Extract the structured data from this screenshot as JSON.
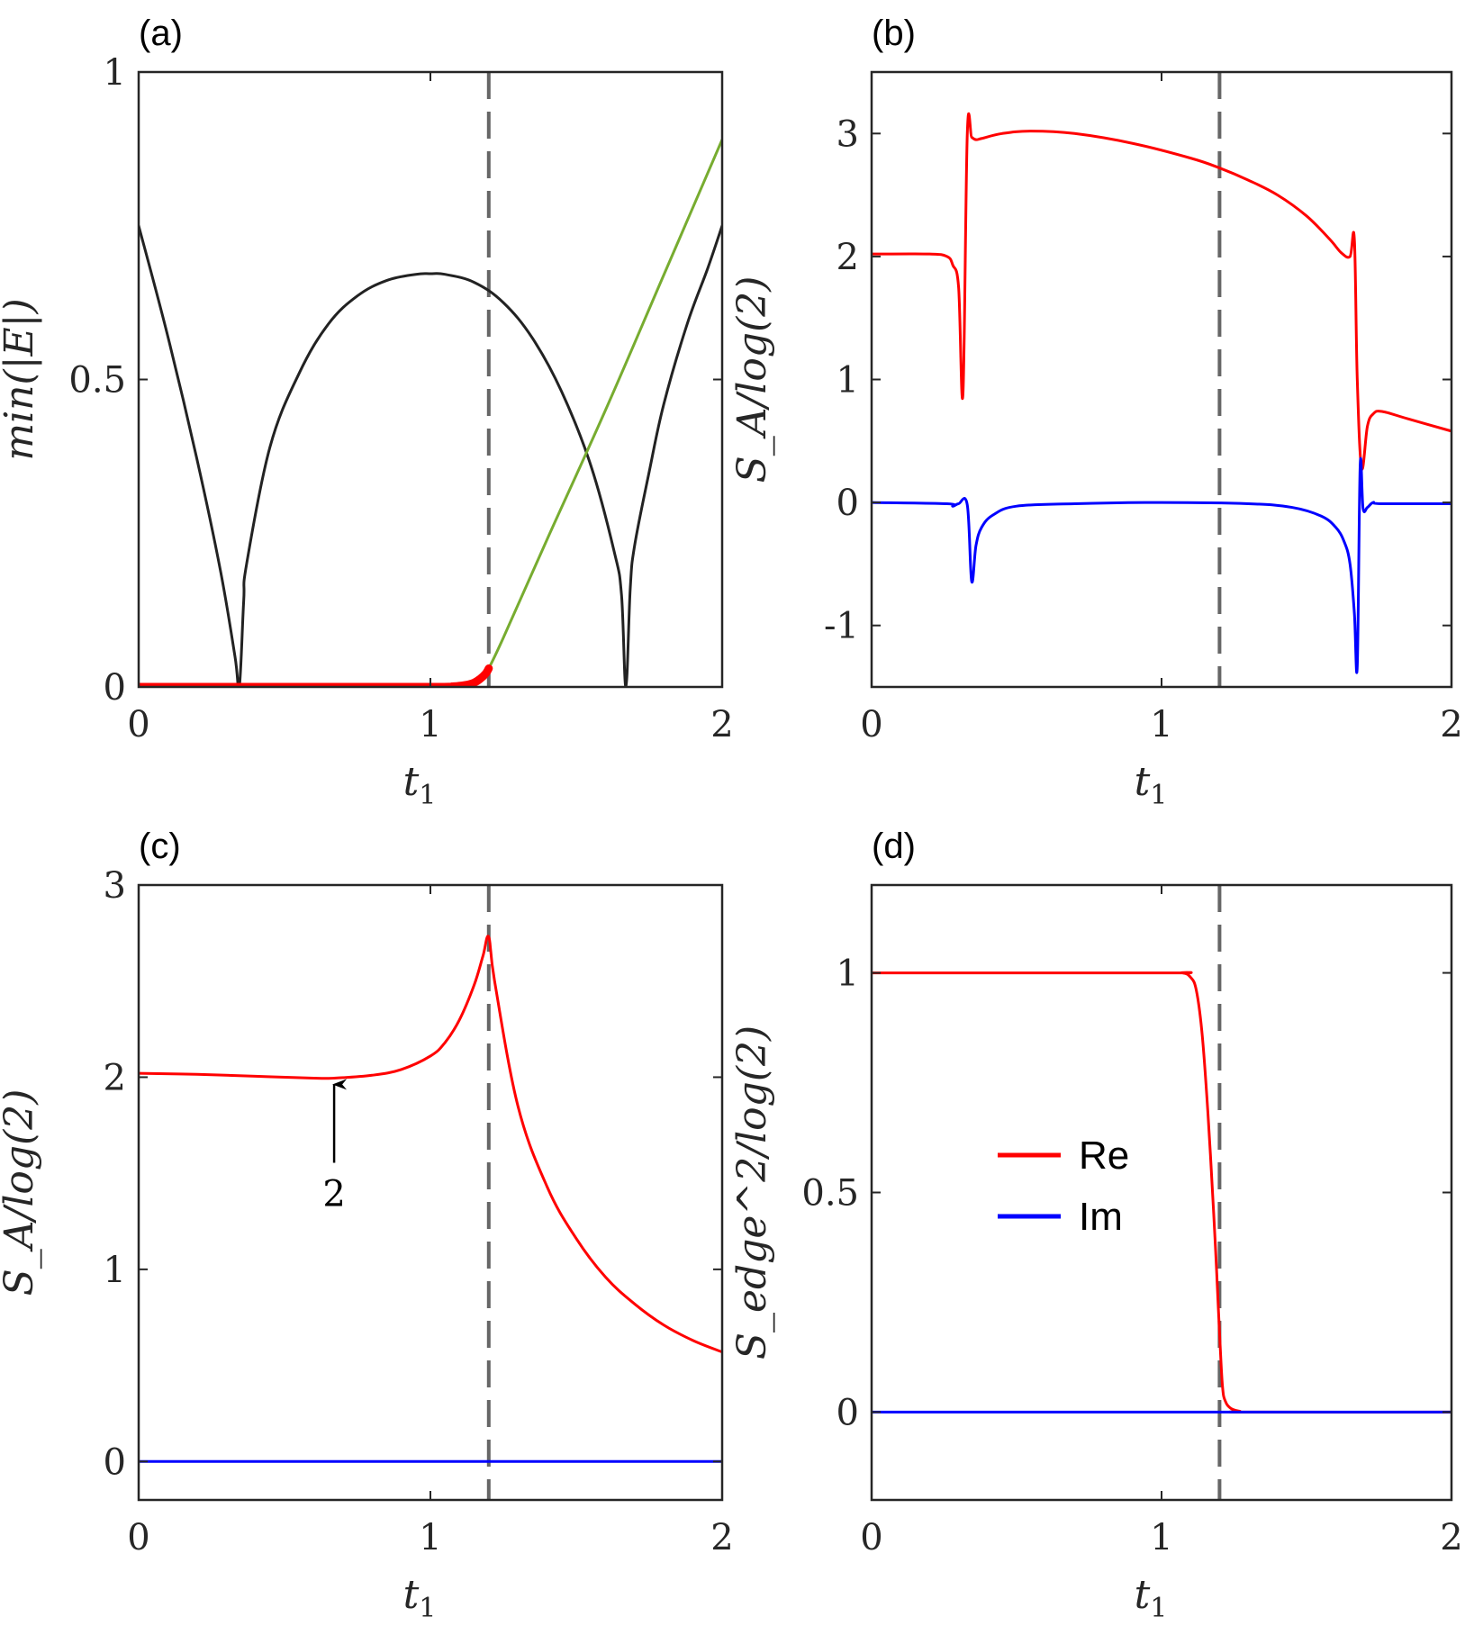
{
  "chart_data": [
    {
      "panel_label": "(a)",
      "type": "line",
      "xlabel": "t",
      "xlabel_sub": "1",
      "ylabel": "min(|E|)",
      "xlim": [
        0,
        2
      ],
      "ylim": [
        0,
        1
      ],
      "xticks": [
        "0",
        "1",
        "2"
      ],
      "yticks": [
        {
          "v": 0,
          "label": "0"
        },
        {
          "v": 0.5,
          "label": "0.5"
        },
        {
          "v": 1,
          "label": "1"
        }
      ],
      "vline": 1.2,
      "series": [
        {
          "name": "black",
          "color": "#222222",
          "width": 3,
          "x": [
            0,
            0.1,
            0.2,
            0.28,
            0.33,
            0.345,
            0.36,
            0.37,
            0.45,
            0.55,
            0.65,
            0.75,
            0.85,
            0.95,
            1.0,
            1.05,
            1.15,
            1.25,
            1.35,
            1.45,
            1.55,
            1.63,
            1.655,
            1.67,
            1.685,
            1.7,
            1.75,
            1.8,
            1.88,
            1.95,
            2.0
          ],
          "y": [
            0.75,
            0.57,
            0.37,
            0.19,
            0.05,
            0.0,
            0.14,
            0.2,
            0.39,
            0.51,
            0.59,
            0.636,
            0.661,
            0.671,
            0.672,
            0.671,
            0.658,
            0.625,
            0.567,
            0.48,
            0.36,
            0.22,
            0.15,
            0.0,
            0.16,
            0.23,
            0.35,
            0.46,
            0.59,
            0.68,
            0.75
          ]
        },
        {
          "name": "green",
          "color": "#77ac30",
          "width": 3,
          "x": [
            1.2,
            1.25,
            1.4,
            1.6,
            1.8,
            2.0
          ],
          "y": [
            0.03,
            0.08,
            0.24,
            0.45,
            0.67,
            0.89
          ]
        },
        {
          "name": "red",
          "color": "#ff0000",
          "width": 9,
          "x": [
            0,
            0.5,
            1.0,
            1.08,
            1.12,
            1.15,
            1.17,
            1.19,
            1.2
          ],
          "y": [
            0,
            0,
            0,
            0.001,
            0.003,
            0.007,
            0.013,
            0.022,
            0.03
          ]
        }
      ]
    },
    {
      "panel_label": "(b)",
      "type": "line",
      "xlabel": "t",
      "xlabel_sub": "1",
      "ylabel": "S_A/log(2)",
      "xlim": [
        0,
        2
      ],
      "ylim": [
        -1.5,
        3.5
      ],
      "xticks": [
        "0",
        "1",
        "2"
      ],
      "yticks": [
        {
          "v": -1,
          "label": "-1"
        },
        {
          "v": 0,
          "label": "0"
        },
        {
          "v": 1,
          "label": "1"
        },
        {
          "v": 2,
          "label": "2"
        },
        {
          "v": 3,
          "label": "3"
        }
      ],
      "vline": 1.2,
      "series": [
        {
          "name": "Re",
          "color": "#ff0000",
          "width": 3,
          "x": [
            0,
            0.2,
            0.26,
            0.28,
            0.3,
            0.315,
            0.33,
            0.345,
            0.36,
            0.38,
            0.45,
            0.55,
            0.7,
            0.9,
            1.1,
            1.2,
            1.3,
            1.4,
            1.5,
            1.58,
            1.62,
            1.65,
            1.665,
            1.675,
            1.69,
            1.71,
            1.73,
            1.76,
            1.85,
            2.0
          ],
          "y": [
            2.02,
            2.02,
            2.0,
            1.93,
            1.75,
            0.88,
            3.0,
            2.97,
            2.95,
            2.96,
            3.0,
            3.02,
            3.0,
            2.92,
            2.8,
            2.72,
            2.62,
            2.5,
            2.33,
            2.14,
            2.03,
            2.0,
            2.14,
            1.0,
            0.28,
            0.62,
            0.72,
            0.74,
            0.68,
            0.58
          ]
        },
        {
          "name": "Im",
          "color": "#0000ff",
          "width": 3,
          "x": [
            0,
            0.26,
            0.28,
            0.3,
            0.33,
            0.345,
            0.36,
            0.38,
            0.42,
            0.5,
            0.7,
            1.0,
            1.3,
            1.45,
            1.55,
            1.6,
            1.63,
            1.65,
            1.665,
            1.675,
            1.685,
            1.695,
            1.71,
            1.73,
            1.76,
            2.0
          ],
          "y": [
            0,
            -0.01,
            -0.03,
            -0.01,
            -0.02,
            -0.64,
            -0.35,
            -0.2,
            -0.1,
            -0.03,
            -0.01,
            0.0,
            -0.01,
            -0.04,
            -0.11,
            -0.2,
            -0.32,
            -0.5,
            -0.9,
            -1.33,
            0.3,
            -0.05,
            -0.04,
            0.0,
            -0.01,
            -0.01
          ]
        }
      ]
    },
    {
      "panel_label": "(c)",
      "type": "line",
      "xlabel": "t",
      "xlabel_sub": "1",
      "ylabel": "S_A/log(2)",
      "xlim": [
        0,
        2
      ],
      "ylim": [
        -0.2,
        3
      ],
      "xticks": [
        "0",
        "1",
        "2"
      ],
      "yticks": [
        {
          "v": 0,
          "label": "0"
        },
        {
          "v": 1,
          "label": "1"
        },
        {
          "v": 2,
          "label": "2"
        },
        {
          "v": 3,
          "label": "3"
        }
      ],
      "vline": 1.2,
      "annotation": {
        "text": "2",
        "x": 0.67,
        "y": 2.0
      },
      "series": [
        {
          "name": "Re",
          "color": "#ff0000",
          "width": 3,
          "x": [
            0,
            0.2,
            0.4,
            0.6,
            0.67,
            0.8,
            0.9,
            1.0,
            1.05,
            1.1,
            1.15,
            1.18,
            1.2,
            1.22,
            1.3,
            1.4,
            1.5,
            1.6,
            1.7,
            1.8,
            1.9,
            2.0
          ],
          "y": [
            2.02,
            2.015,
            2.005,
            1.995,
            1.995,
            2.01,
            2.04,
            2.11,
            2.18,
            2.3,
            2.48,
            2.63,
            2.73,
            2.5,
            1.85,
            1.43,
            1.16,
            0.96,
            0.82,
            0.71,
            0.63,
            0.57
          ]
        },
        {
          "name": "Im",
          "color": "#0000ff",
          "width": 3,
          "x": [
            0,
            2.0
          ],
          "y": [
            0,
            0
          ]
        }
      ]
    },
    {
      "panel_label": "(d)",
      "type": "line",
      "xlabel": "t",
      "xlabel_sub": "1",
      "ylabel": "S_edge^2/log(2)",
      "xlim": [
        0,
        2
      ],
      "ylim": [
        -0.2,
        1.2
      ],
      "xticks": [
        "0",
        "1",
        "2"
      ],
      "yticks": [
        {
          "v": 0,
          "label": "0"
        },
        {
          "v": 0.5,
          "label": "0.5"
        },
        {
          "v": 1,
          "label": "1"
        }
      ],
      "vline": 1.2,
      "legend": {
        "position": "center-left",
        "entries": [
          {
            "label": "Re",
            "color": "#ff0000"
          },
          {
            "label": "Im",
            "color": "#0000ff"
          }
        ]
      },
      "series": [
        {
          "name": "Re",
          "color": "#ff0000",
          "width": 3,
          "x": [
            0,
            1.0,
            1.07,
            1.1,
            1.12,
            1.14,
            1.16,
            1.18,
            1.19,
            1.2,
            1.21,
            1.22,
            1.24,
            1.27,
            1.3,
            2.0
          ],
          "y": [
            1.0,
            1.0,
            1.0,
            0.99,
            0.96,
            0.86,
            0.68,
            0.45,
            0.32,
            0.18,
            0.06,
            0.025,
            0.008,
            0.002,
            0.0,
            0.0
          ]
        },
        {
          "name": "Im",
          "color": "#0000ff",
          "width": 3,
          "x": [
            0,
            2.0
          ],
          "y": [
            0,
            0
          ]
        }
      ]
    }
  ]
}
